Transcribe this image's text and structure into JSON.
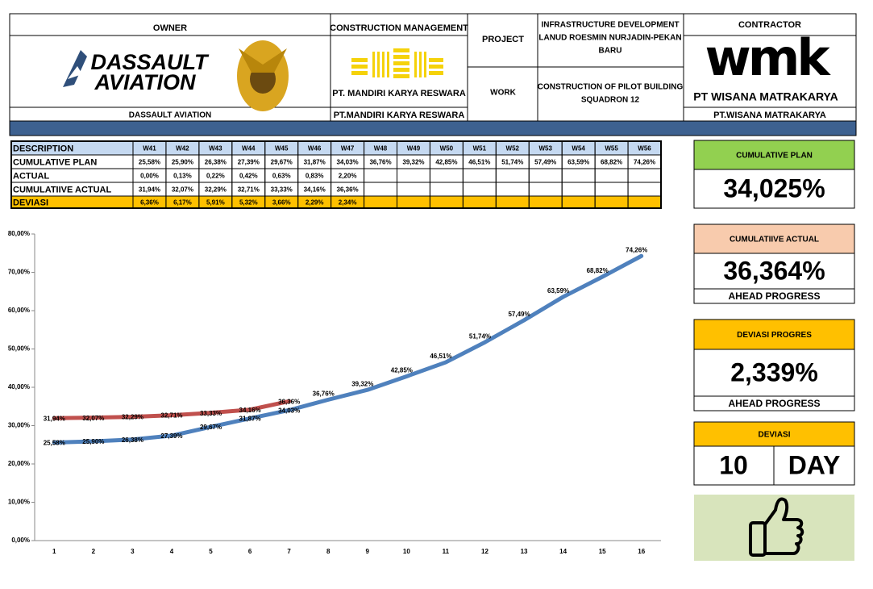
{
  "header": {
    "owner": {
      "title": "OWNER",
      "logo_lines": [
        "DASSAULT",
        "AVIATION"
      ],
      "name": "DASSAULT AVIATION"
    },
    "cm": {
      "title": "CONSTRUCTION MANAGEMENT",
      "logo_text": "PT. MANDIRI KARYA RESWARA",
      "name": "PT.MANDIRI KARYA RESWARA"
    },
    "project": {
      "label": "PROJECT",
      "lines": [
        "INFRASTRUCTURE DEVELOPMENT",
        "LANUD ROESMIN NURJADIN-PEKAN",
        "BARU"
      ]
    },
    "work": {
      "label": "WORK",
      "lines": [
        "CONSTRUCTION OF PILOT BUILDING",
        "SQUADRON 12"
      ]
    },
    "contractor": {
      "title": "CONTRACTOR",
      "logo_mark": "wmk",
      "logo_text": "PT WISANA MATRAKARYA",
      "name": "PT.WISANA MATRAKARYA"
    }
  },
  "table": {
    "header": [
      "DESCRIPTION",
      "W41",
      "W42",
      "W43",
      "W44",
      "W45",
      "W46",
      "W47",
      "W48",
      "W49",
      "W50",
      "W51",
      "W52",
      "W53",
      "W54",
      "W55",
      "W56"
    ],
    "rows": [
      [
        "CUMULATIVE PLAN",
        "25,58%",
        "25,90%",
        "26,38%",
        "27,39%",
        "29,67%",
        "31,87%",
        "34,03%",
        "36,76%",
        "39,32%",
        "42,85%",
        "46,51%",
        "51,74%",
        "57,49%",
        "63,59%",
        "68,82%",
        "74,26%"
      ],
      [
        "ACTUAL",
        "0,00%",
        "0,13%",
        "0,22%",
        "0,42%",
        "0,63%",
        "0,83%",
        "2,20%"
      ],
      [
        "CUMULATIIVE ACTUAL",
        "31,94%",
        "32,07%",
        "32,29%",
        "32,71%",
        "33,33%",
        "34,16%",
        "36,36%"
      ],
      [
        "DEVIASI",
        "6,36%",
        "6,17%",
        "5,91%",
        "5,32%",
        "3,66%",
        "2,29%",
        "2,34%"
      ]
    ]
  },
  "chart_data": {
    "type": "line",
    "categories": [
      "1",
      "2",
      "3",
      "4",
      "5",
      "6",
      "7",
      "8",
      "9",
      "10",
      "11",
      "12",
      "13",
      "14",
      "15",
      "16"
    ],
    "ylim": [
      0,
      80
    ],
    "yticks": [
      {
        "value": 0,
        "label": "0,00%"
      },
      {
        "value": 10,
        "label": "10,00%"
      },
      {
        "value": 20,
        "label": "20,00%"
      },
      {
        "value": 30,
        "label": "30,00%"
      },
      {
        "value": 40,
        "label": "40,00%"
      },
      {
        "value": 50,
        "label": "50,00%"
      },
      {
        "value": 60,
        "label": "60,00%"
      },
      {
        "value": 70,
        "label": "70,00%"
      },
      {
        "value": 80,
        "label": "80,00%"
      }
    ],
    "series": [
      {
        "name": "CUMULATIVE PLAN",
        "color": "#4f81bd",
        "values": [
          25.58,
          25.9,
          26.38,
          27.39,
          29.67,
          31.87,
          34.03,
          36.76,
          39.32,
          42.85,
          46.51,
          51.74,
          57.49,
          63.59,
          68.82,
          74.26
        ],
        "value_labels": [
          "25,58%",
          "25,90%",
          "26,38%",
          "27,39%",
          "29,67%",
          "31,87%",
          "34,03%",
          "36,76%",
          "39,32%",
          "42,85%",
          "46,51%",
          "51,74%",
          "57,49%",
          "63,59%",
          "68,82%",
          "74,26%"
        ]
      },
      {
        "name": "CUMULATIIVE ACTUAL",
        "color": "#c0504d",
        "values": [
          31.94,
          32.07,
          32.29,
          32.71,
          33.33,
          34.16,
          36.36,
          null,
          null,
          null,
          null,
          null,
          null,
          null,
          null,
          null
        ],
        "value_labels": [
          "31,94%",
          "32,07%",
          "32,29%",
          "32,71%",
          "33,33%",
          "34,16%",
          "36,36%",
          null,
          null,
          null,
          null,
          null,
          null,
          null,
          null,
          null
        ]
      }
    ]
  },
  "panels": [
    {
      "title": "CUMULATIVE PLAN",
      "value": "34,025%"
    },
    {
      "title": "CUMULATIIVE ACTUAL",
      "value": "36,364%",
      "note": "AHEAD PROGRESS"
    },
    {
      "title": "DEVIASI PROGRES",
      "value": "2,339%",
      "note": "AHEAD PROGRESS"
    },
    {
      "title": "DEVIASI",
      "value": "10",
      "unit": "DAY"
    }
  ]
}
